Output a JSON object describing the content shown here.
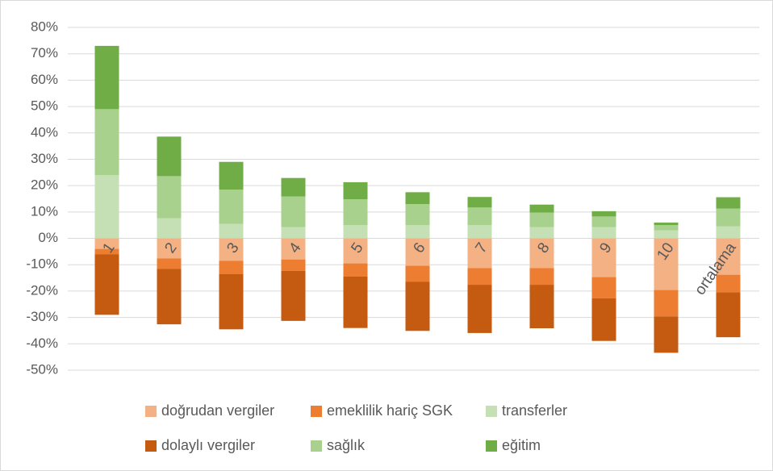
{
  "chart_data": {
    "type": "bar",
    "stacked": true,
    "categories": [
      "1",
      "2",
      "3",
      "4",
      "5",
      "6",
      "7",
      "8",
      "9",
      "10",
      "ortalama"
    ],
    "series": [
      {
        "name": "doğrudan vergiler",
        "color": "#f4b183",
        "values": [
          -4,
          -7.6,
          -8.5,
          -8,
          -9.5,
          -10.4,
          -11.3,
          -11.3,
          -14.7,
          -19.6,
          -13.8
        ]
      },
      {
        "name": "emeklilik hariç SGK",
        "color": "#ed7d31",
        "values": [
          -2,
          -4,
          -5,
          -4.3,
          -5,
          -6,
          -6.3,
          -6.3,
          -8,
          -10,
          -6.7
        ]
      },
      {
        "name": "transferler",
        "color": "#c5e0b4",
        "values": [
          24,
          7.6,
          5.5,
          4.3,
          5,
          5,
          5,
          4.3,
          4.3,
          3,
          4.6
        ]
      },
      {
        "name": "dolaylı vergiler",
        "color": "#c55a11",
        "values": [
          -23,
          -21,
          -21,
          -19,
          -19.5,
          -18.7,
          -18.3,
          -16.5,
          -16.2,
          -13.8,
          -17
        ]
      },
      {
        "name": "sağlık",
        "color": "#a9d18e",
        "values": [
          25,
          16,
          13,
          11.6,
          9.8,
          8,
          6.7,
          5.5,
          4,
          2,
          6.7
        ]
      },
      {
        "name": "eğitim",
        "color": "#70ad47",
        "values": [
          24,
          15,
          10.5,
          7,
          6.5,
          4.5,
          4,
          3,
          2,
          1,
          4.3
        ]
      }
    ],
    "ylim": [
      -50,
      80
    ],
    "yticks": [
      {
        "value": -50,
        "label": "-50%"
      },
      {
        "value": -40,
        "label": "-40%"
      },
      {
        "value": -30,
        "label": "-30%"
      },
      {
        "value": -20,
        "label": "-20%"
      },
      {
        "value": -10,
        "label": "-10%"
      },
      {
        "value": 0,
        "label": "0%"
      },
      {
        "value": 10,
        "label": "10%"
      },
      {
        "value": 20,
        "label": "20%"
      },
      {
        "value": 30,
        "label": "30%"
      },
      {
        "value": 40,
        "label": "40%"
      },
      {
        "value": 50,
        "label": "50%"
      },
      {
        "value": 60,
        "label": "60%"
      },
      {
        "value": 70,
        "label": "70%"
      },
      {
        "value": 80,
        "label": "80%"
      }
    ],
    "grid": true,
    "legend": "bottom"
  }
}
